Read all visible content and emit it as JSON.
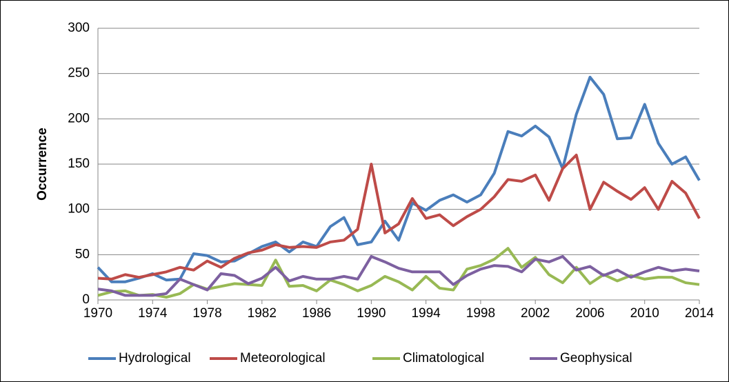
{
  "chart_data": {
    "type": "line",
    "y_label": "Occurrence",
    "x": [
      1970,
      1971,
      1972,
      1973,
      1974,
      1975,
      1976,
      1977,
      1978,
      1979,
      1980,
      1981,
      1982,
      1983,
      1984,
      1985,
      1986,
      1987,
      1988,
      1989,
      1990,
      1991,
      1992,
      1993,
      1994,
      1995,
      1996,
      1997,
      1998,
      1999,
      2000,
      2001,
      2002,
      2003,
      2004,
      2005,
      2006,
      2007,
      2008,
      2009,
      2010,
      2011,
      2012,
      2013,
      2014
    ],
    "xlim": [
      1970,
      2014
    ],
    "xticks": [
      1970,
      1974,
      1978,
      1982,
      1986,
      1990,
      1994,
      1998,
      2002,
      2006,
      2010,
      2014
    ],
    "ylim": [
      0,
      300
    ],
    "yticks": [
      0,
      50,
      100,
      150,
      200,
      250,
      300
    ],
    "grid": true,
    "legend": "bottom",
    "series": [
      {
        "name": "Hydrological",
        "color": "#4a7ebb",
        "values": [
          36,
          20,
          20,
          24,
          29,
          22,
          23,
          51,
          49,
          42,
          43,
          51,
          59,
          64,
          53,
          64,
          59,
          81,
          91,
          61,
          64,
          87,
          66,
          107,
          99,
          110,
          116,
          108,
          116,
          140,
          186,
          181,
          192,
          180,
          145,
          205,
          246,
          227,
          178,
          179,
          216,
          173,
          150,
          158,
          132
        ]
      },
      {
        "name": "Meteorological",
        "color": "#be4b48",
        "values": [
          24,
          23,
          28,
          25,
          28,
          31,
          36,
          33,
          43,
          36,
          46,
          52,
          55,
          61,
          58,
          59,
          58,
          64,
          66,
          78,
          150,
          74,
          84,
          112,
          90,
          94,
          82,
          92,
          100,
          114,
          133,
          131,
          138,
          110,
          145,
          160,
          100,
          130,
          120,
          111,
          124,
          100,
          131,
          118,
          90
        ]
      },
      {
        "name": "Climatological",
        "color": "#98b954",
        "values": [
          5,
          9,
          10,
          5,
          6,
          3,
          7,
          17,
          12,
          15,
          18,
          17,
          16,
          44,
          15,
          16,
          10,
          22,
          17,
          10,
          16,
          26,
          20,
          11,
          26,
          13,
          11,
          34,
          38,
          45,
          57,
          36,
          47,
          28,
          19,
          36,
          18,
          28,
          21,
          27,
          23,
          25,
          25,
          19,
          17
        ]
      },
      {
        "name": "Geophysical",
        "color": "#7d60a0",
        "values": [
          12,
          10,
          5,
          5,
          5,
          7,
          23,
          17,
          11,
          29,
          27,
          18,
          24,
          36,
          21,
          26,
          23,
          23,
          26,
          23,
          48,
          42,
          35,
          31,
          31,
          31,
          17,
          27,
          34,
          38,
          37,
          31,
          45,
          42,
          48,
          33,
          37,
          27,
          33,
          25,
          31,
          36,
          32,
          34,
          32
        ]
      }
    ]
  }
}
